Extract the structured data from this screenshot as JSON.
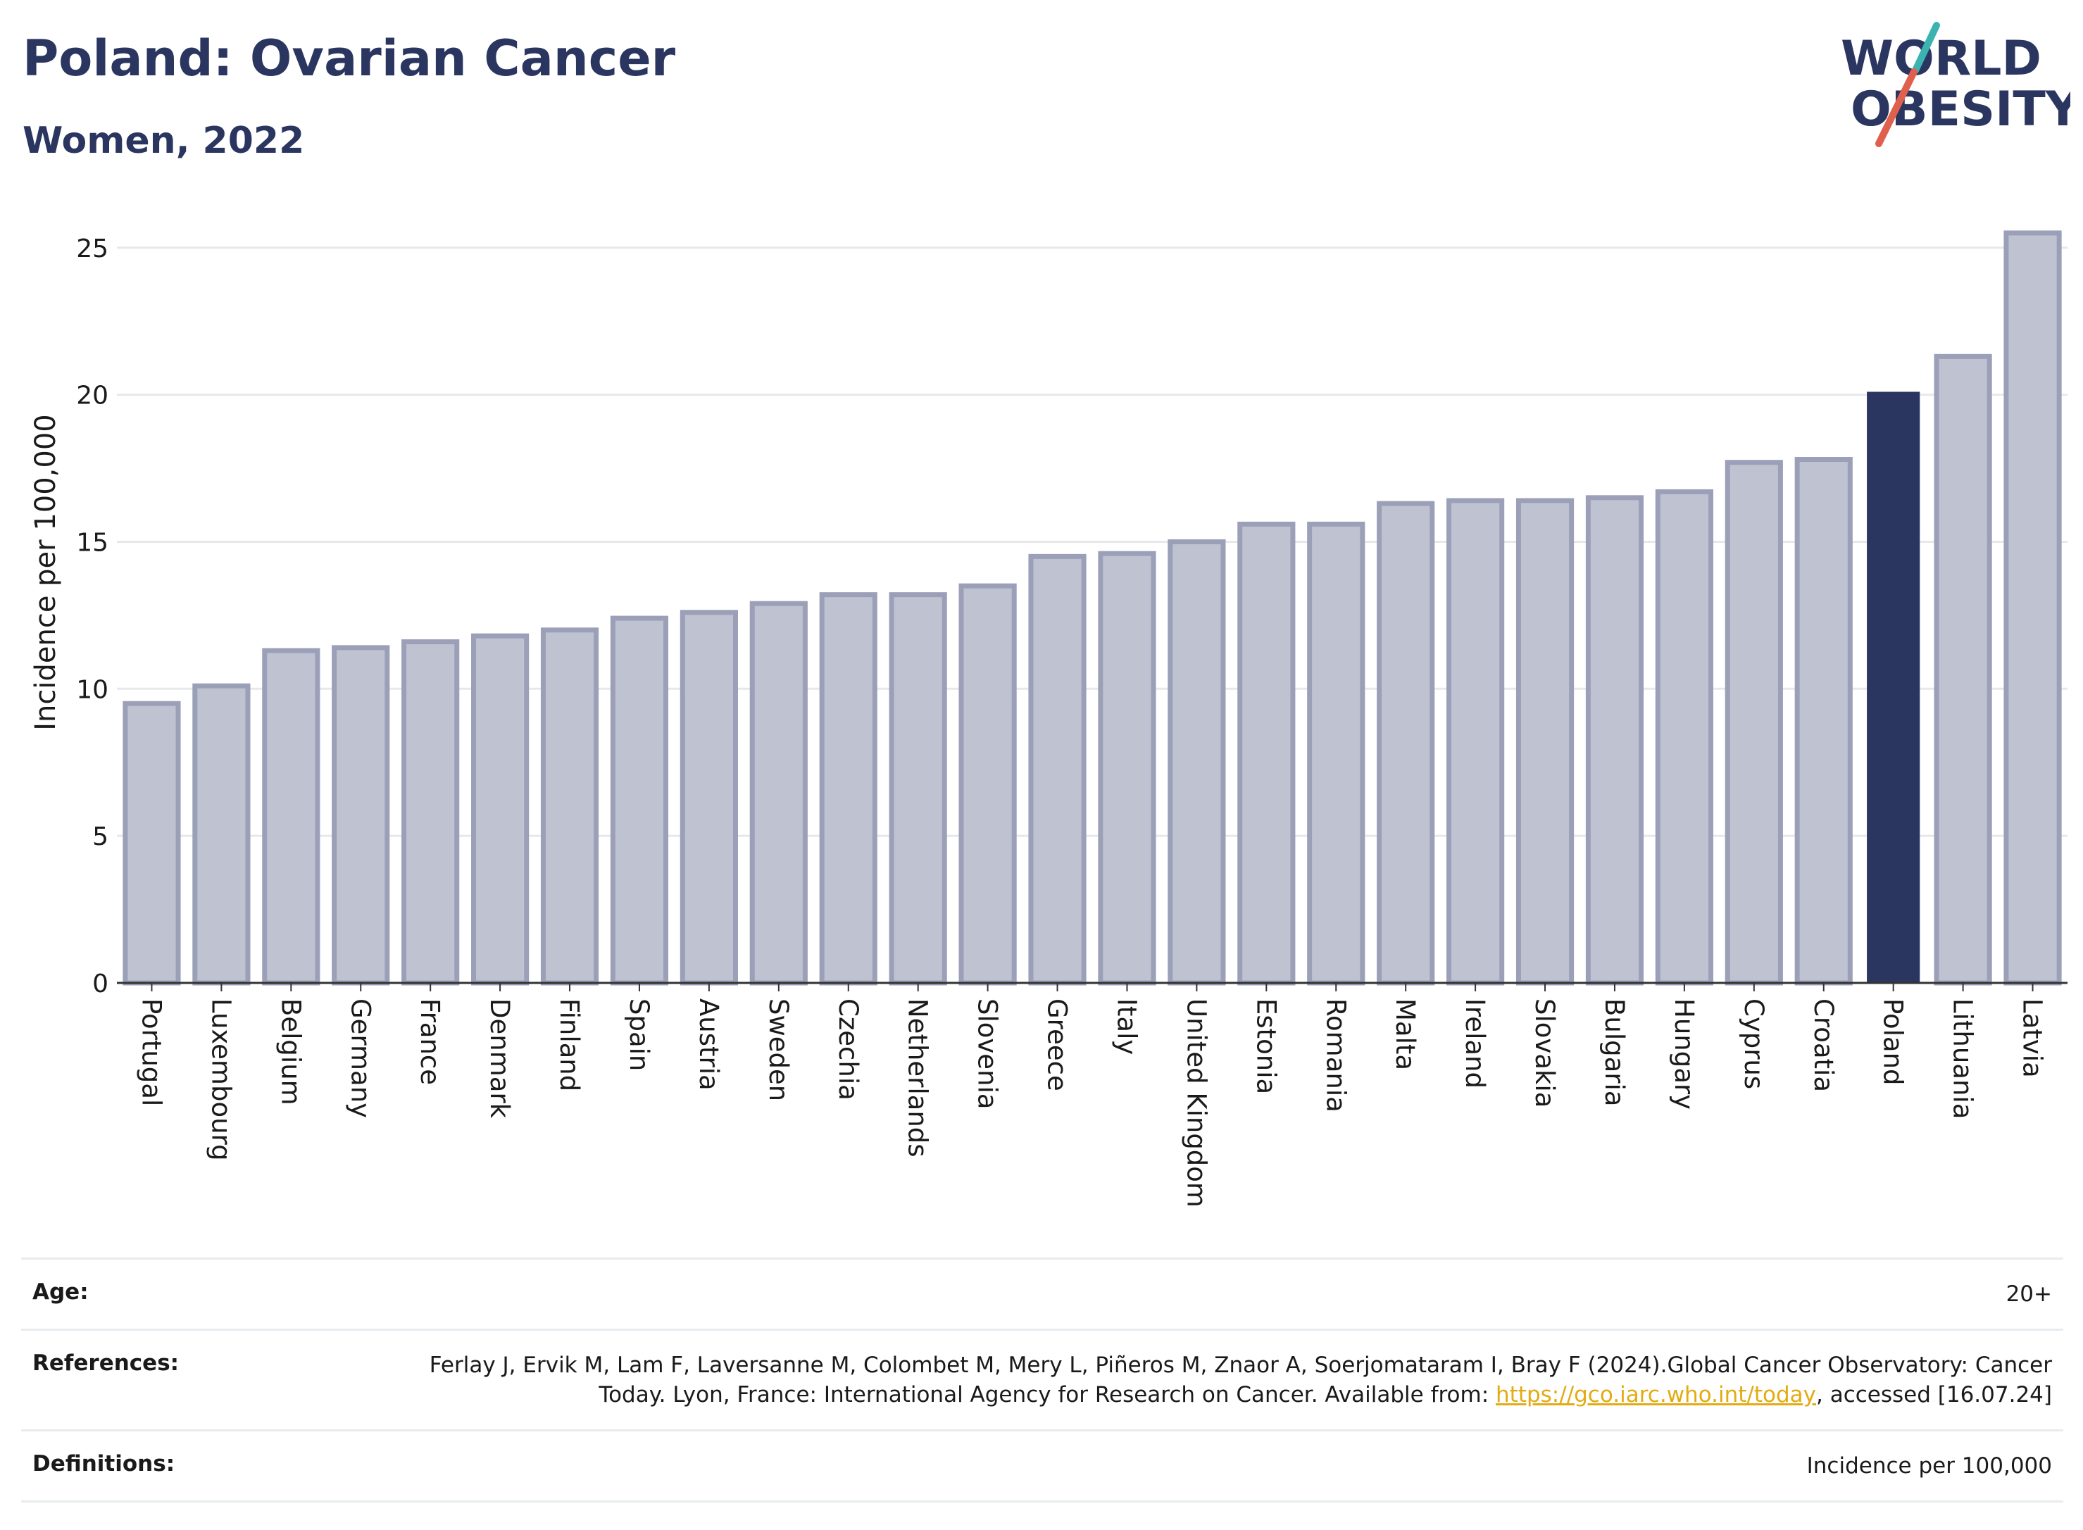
{
  "header": {
    "title": "Poland: Ovarian Cancer",
    "subtitle": "Women, 2022"
  },
  "logo": {
    "line1": "WORLD",
    "line2": "OBESITY",
    "colors": {
      "navy": "#2b3660",
      "teal": "#3bb3b0",
      "coral": "#e0604e"
    }
  },
  "chart_data": {
    "type": "bar",
    "ylabel": "Incidence per 100,000",
    "ylim": [
      0,
      26
    ],
    "yticks": [
      0,
      5,
      10,
      15,
      20,
      25
    ],
    "grid": true,
    "categories": [
      "Portugal",
      "Luxembourg",
      "Belgium",
      "Germany",
      "France",
      "Denmark",
      "Finland",
      "Spain",
      "Austria",
      "Sweden",
      "Czechia",
      "Netherlands",
      "Slovenia",
      "Greece",
      "Italy",
      "United Kingdom",
      "Estonia",
      "Romania",
      "Malta",
      "Ireland",
      "Slovakia",
      "Bulgaria",
      "Hungary",
      "Cyprus",
      "Croatia",
      "Poland",
      "Lithuania",
      "Latvia"
    ],
    "values": [
      9.5,
      10.1,
      11.3,
      11.4,
      11.6,
      11.8,
      12.0,
      12.4,
      12.6,
      12.9,
      13.2,
      13.2,
      13.5,
      14.5,
      14.6,
      15.0,
      15.6,
      15.6,
      16.3,
      16.4,
      16.4,
      16.5,
      16.7,
      17.7,
      17.8,
      20.1,
      21.3,
      25.5
    ],
    "highlight": "Poland",
    "colors": {
      "bar": "#bfc2d0",
      "bar_edge": "#9ba0b8",
      "highlight": "#2b3660"
    }
  },
  "info": {
    "age_label": "Age:",
    "age_value": "20+",
    "references_label": "References:",
    "references_text": "Ferlay J, Ervik M, Lam F, Laversanne M, Colombet M, Mery L, Piñeros M, Znaor A, Soerjomataram I, Bray F (2024).Global Cancer Observatory: Cancer Today. Lyon, France: International Agency for Research on Cancer. Available from: ",
    "references_link": "https://gco.iarc.who.int/today",
    "references_suffix": ", accessed [16.07.24]",
    "definitions_label": "Definitions:",
    "definitions_value": "Incidence per 100,000"
  }
}
